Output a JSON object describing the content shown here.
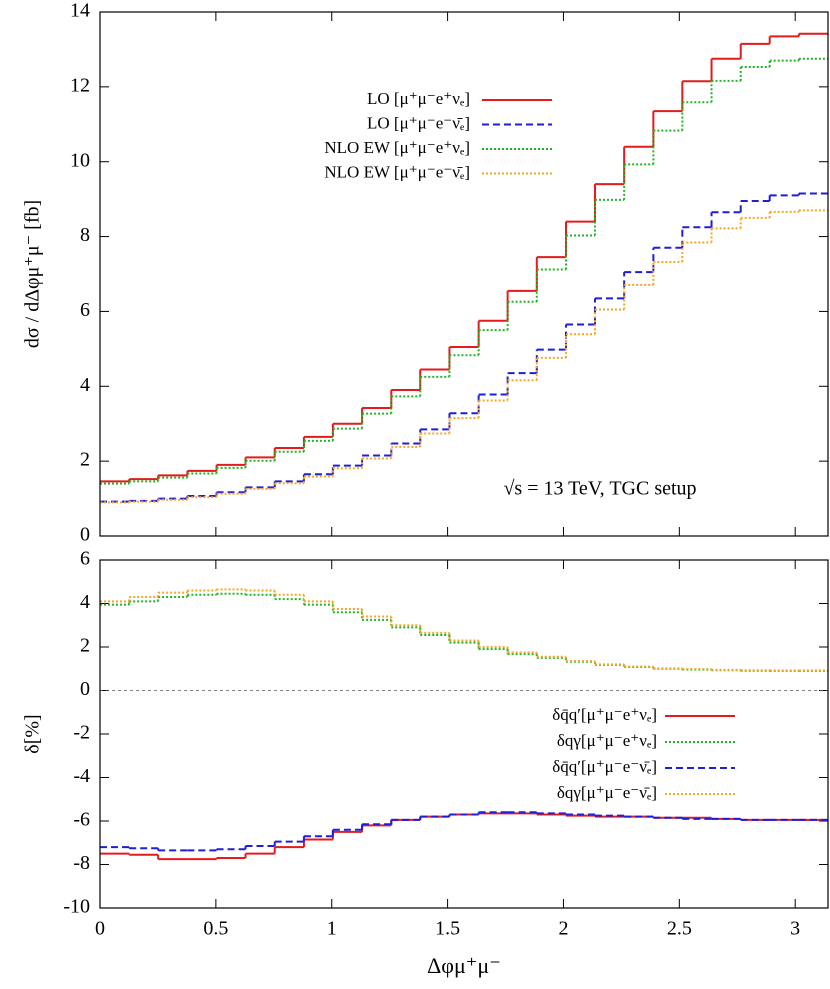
{
  "chart_data": [
    {
      "type": "histogram",
      "ylabel": "dσ / dΔφμ⁺μ⁻ [fb]",
      "annotation": "√s = 13 TeV, TGC setup",
      "legend": "upper center",
      "bins": [
        0,
        0.126,
        0.251,
        0.377,
        0.503,
        0.628,
        0.754,
        0.88,
        1.005,
        1.131,
        1.257,
        1.382,
        1.508,
        1.634,
        1.759,
        1.885,
        2.011,
        2.136,
        2.262,
        2.388,
        2.513,
        2.639,
        2.765,
        2.89,
        3.016,
        3.142
      ],
      "xlim": [
        0,
        3.1416
      ],
      "xticks": [
        0,
        0.5,
        1,
        1.5,
        2,
        2.5,
        3
      ],
      "ylim": [
        0,
        14
      ],
      "yticks": [
        0,
        2,
        4,
        6,
        8,
        10,
        12,
        14
      ],
      "series": [
        {
          "name": "LO  [μ⁺μ⁻e⁺νₑ]",
          "color": "#e41a1c",
          "linestyle": "solid",
          "values": [
            1.46,
            1.52,
            1.62,
            1.74,
            1.9,
            2.1,
            2.35,
            2.65,
            3.0,
            3.42,
            3.9,
            4.45,
            5.05,
            5.75,
            6.55,
            7.45,
            8.4,
            9.4,
            10.4,
            11.35,
            12.15,
            12.75,
            13.15,
            13.35,
            13.42
          ]
        },
        {
          "name": "LO  [μ⁺μ⁻e⁻ν̄ₑ]",
          "color": "#1f1fd6",
          "linestyle": "dashed",
          "values": [
            0.92,
            0.94,
            1.0,
            1.07,
            1.17,
            1.3,
            1.46,
            1.65,
            1.88,
            2.15,
            2.47,
            2.85,
            3.28,
            3.78,
            4.35,
            4.98,
            5.65,
            6.35,
            7.05,
            7.7,
            8.25,
            8.65,
            8.95,
            9.1,
            9.15
          ]
        },
        {
          "name": "NLO EW  [μ⁺μ⁻e⁺νₑ]",
          "color": "#22b522",
          "linestyle": "dotted",
          "values": [
            1.4,
            1.46,
            1.56,
            1.67,
            1.82,
            2.01,
            2.25,
            2.54,
            2.87,
            3.27,
            3.73,
            4.25,
            4.83,
            5.5,
            6.26,
            7.12,
            8.03,
            8.98,
            9.93,
            10.83,
            11.59,
            12.16,
            12.53,
            12.7,
            12.75
          ]
        },
        {
          "name": "NLO EW  [μ⁺μ⁻e⁻ν̄ₑ]",
          "color": "#f5a623",
          "linestyle": "dotted",
          "values": [
            0.9,
            0.92,
            0.97,
            1.04,
            1.13,
            1.26,
            1.41,
            1.59,
            1.81,
            2.07,
            2.38,
            2.74,
            3.15,
            3.62,
            4.16,
            4.76,
            5.39,
            6.05,
            6.71,
            7.32,
            7.84,
            8.22,
            8.5,
            8.66,
            8.7
          ]
        }
      ]
    },
    {
      "type": "histogram",
      "ylabel": "δ[%]",
      "xlabel": "Δφμ⁺μ⁻",
      "legend": "lower right",
      "reference_line": 0,
      "bins": [
        0,
        0.126,
        0.251,
        0.377,
        0.503,
        0.628,
        0.754,
        0.88,
        1.005,
        1.131,
        1.257,
        1.382,
        1.508,
        1.634,
        1.759,
        1.885,
        2.011,
        2.136,
        2.262,
        2.388,
        2.513,
        2.639,
        2.765,
        2.89,
        3.016,
        3.142
      ],
      "xlim": [
        0,
        3.1416
      ],
      "xticks": [
        0,
        0.5,
        1,
        1.5,
        2,
        2.5,
        3
      ],
      "ylim": [
        -10,
        6
      ],
      "yticks": [
        -10,
        -8,
        -6,
        -4,
        -2,
        0,
        2,
        4,
        6
      ],
      "series": [
        {
          "name": "δq̄q′[μ⁺μ⁻e⁺νₑ]",
          "color": "#e41a1c",
          "linestyle": "solid",
          "values": [
            -7.5,
            -7.55,
            -7.75,
            -7.75,
            -7.7,
            -7.5,
            -7.2,
            -6.85,
            -6.5,
            -6.2,
            -5.95,
            -5.8,
            -5.7,
            -5.65,
            -5.65,
            -5.7,
            -5.75,
            -5.8,
            -5.8,
            -5.85,
            -5.85,
            -5.9,
            -5.95,
            -5.95,
            -5.95
          ]
        },
        {
          "name": "δqγ[μ⁺μ⁻e⁺νₑ]",
          "color": "#22b522",
          "linestyle": "dotted",
          "values": [
            3.95,
            4.1,
            4.3,
            4.4,
            4.45,
            4.4,
            4.2,
            3.95,
            3.6,
            3.25,
            2.9,
            2.55,
            2.2,
            1.9,
            1.68,
            1.5,
            1.32,
            1.18,
            1.08,
            1.0,
            0.96,
            0.93,
            0.91,
            0.9,
            0.9
          ]
        },
        {
          "name": "δq̄q′[μ⁺μ⁻e⁻ν̄ₑ]",
          "color": "#1f1fd6",
          "linestyle": "dashed",
          "values": [
            -7.2,
            -7.25,
            -7.35,
            -7.35,
            -7.3,
            -7.15,
            -6.95,
            -6.7,
            -6.4,
            -6.15,
            -5.95,
            -5.8,
            -5.7,
            -5.6,
            -5.6,
            -5.65,
            -5.7,
            -5.75,
            -5.8,
            -5.85,
            -5.9,
            -5.9,
            -5.95,
            -5.95,
            -5.95
          ]
        },
        {
          "name": "δqγ[μ⁺μ⁻e⁻ν̄ₑ]",
          "color": "#f5a623",
          "linestyle": "dotted",
          "values": [
            4.1,
            4.3,
            4.5,
            4.6,
            4.65,
            4.6,
            4.4,
            4.1,
            3.75,
            3.4,
            3.0,
            2.65,
            2.3,
            2.0,
            1.75,
            1.55,
            1.35,
            1.2,
            1.1,
            1.02,
            0.98,
            0.95,
            0.93,
            0.92,
            0.92
          ]
        }
      ]
    }
  ]
}
